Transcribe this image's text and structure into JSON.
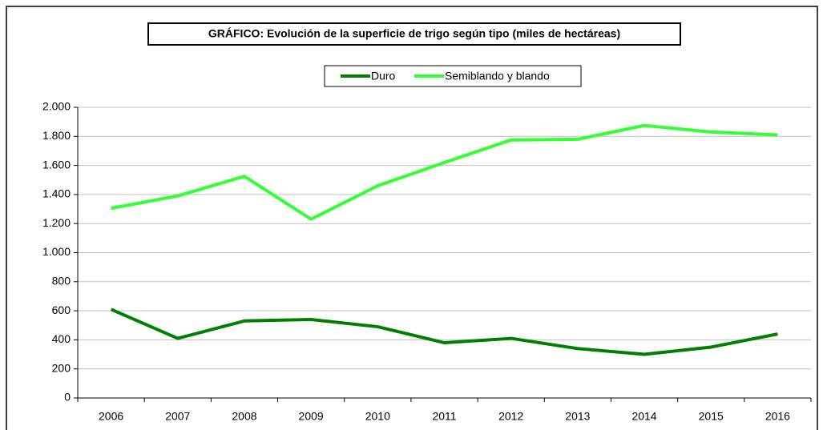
{
  "chart_data": {
    "type": "line",
    "title": "GRÁFICO: Evolución de la superficie de trigo según tipo (miles de hectáreas)",
    "categories": [
      "2006",
      "2007",
      "2008",
      "2009",
      "2010",
      "2011",
      "2012",
      "2013",
      "2014",
      "2015",
      "2016"
    ],
    "series": [
      {
        "name": "Duro",
        "color": "#008000",
        "values": [
          610,
          410,
          530,
          540,
          490,
          380,
          410,
          340,
          300,
          350,
          440
        ]
      },
      {
        "name": "Semiblando y blando",
        "color": "#33ff33",
        "values": [
          1305,
          1390,
          1525,
          1230,
          1460,
          1620,
          1775,
          1780,
          1875,
          1830,
          1810
        ]
      }
    ],
    "ylim": [
      0,
      2000
    ],
    "yticks": [
      0,
      200,
      400,
      600,
      800,
      {
        "value": 1000,
        "label": "1.000"
      },
      {
        "value": 1200,
        "label": "1.200"
      },
      {
        "value": 1400,
        "label": "1.400"
      },
      {
        "value": 1600,
        "label": "1.600"
      },
      {
        "value": 1800,
        "label": "1.800"
      },
      {
        "value": 2000,
        "label": "2.000"
      }
    ],
    "grid": true,
    "legend": "top"
  }
}
